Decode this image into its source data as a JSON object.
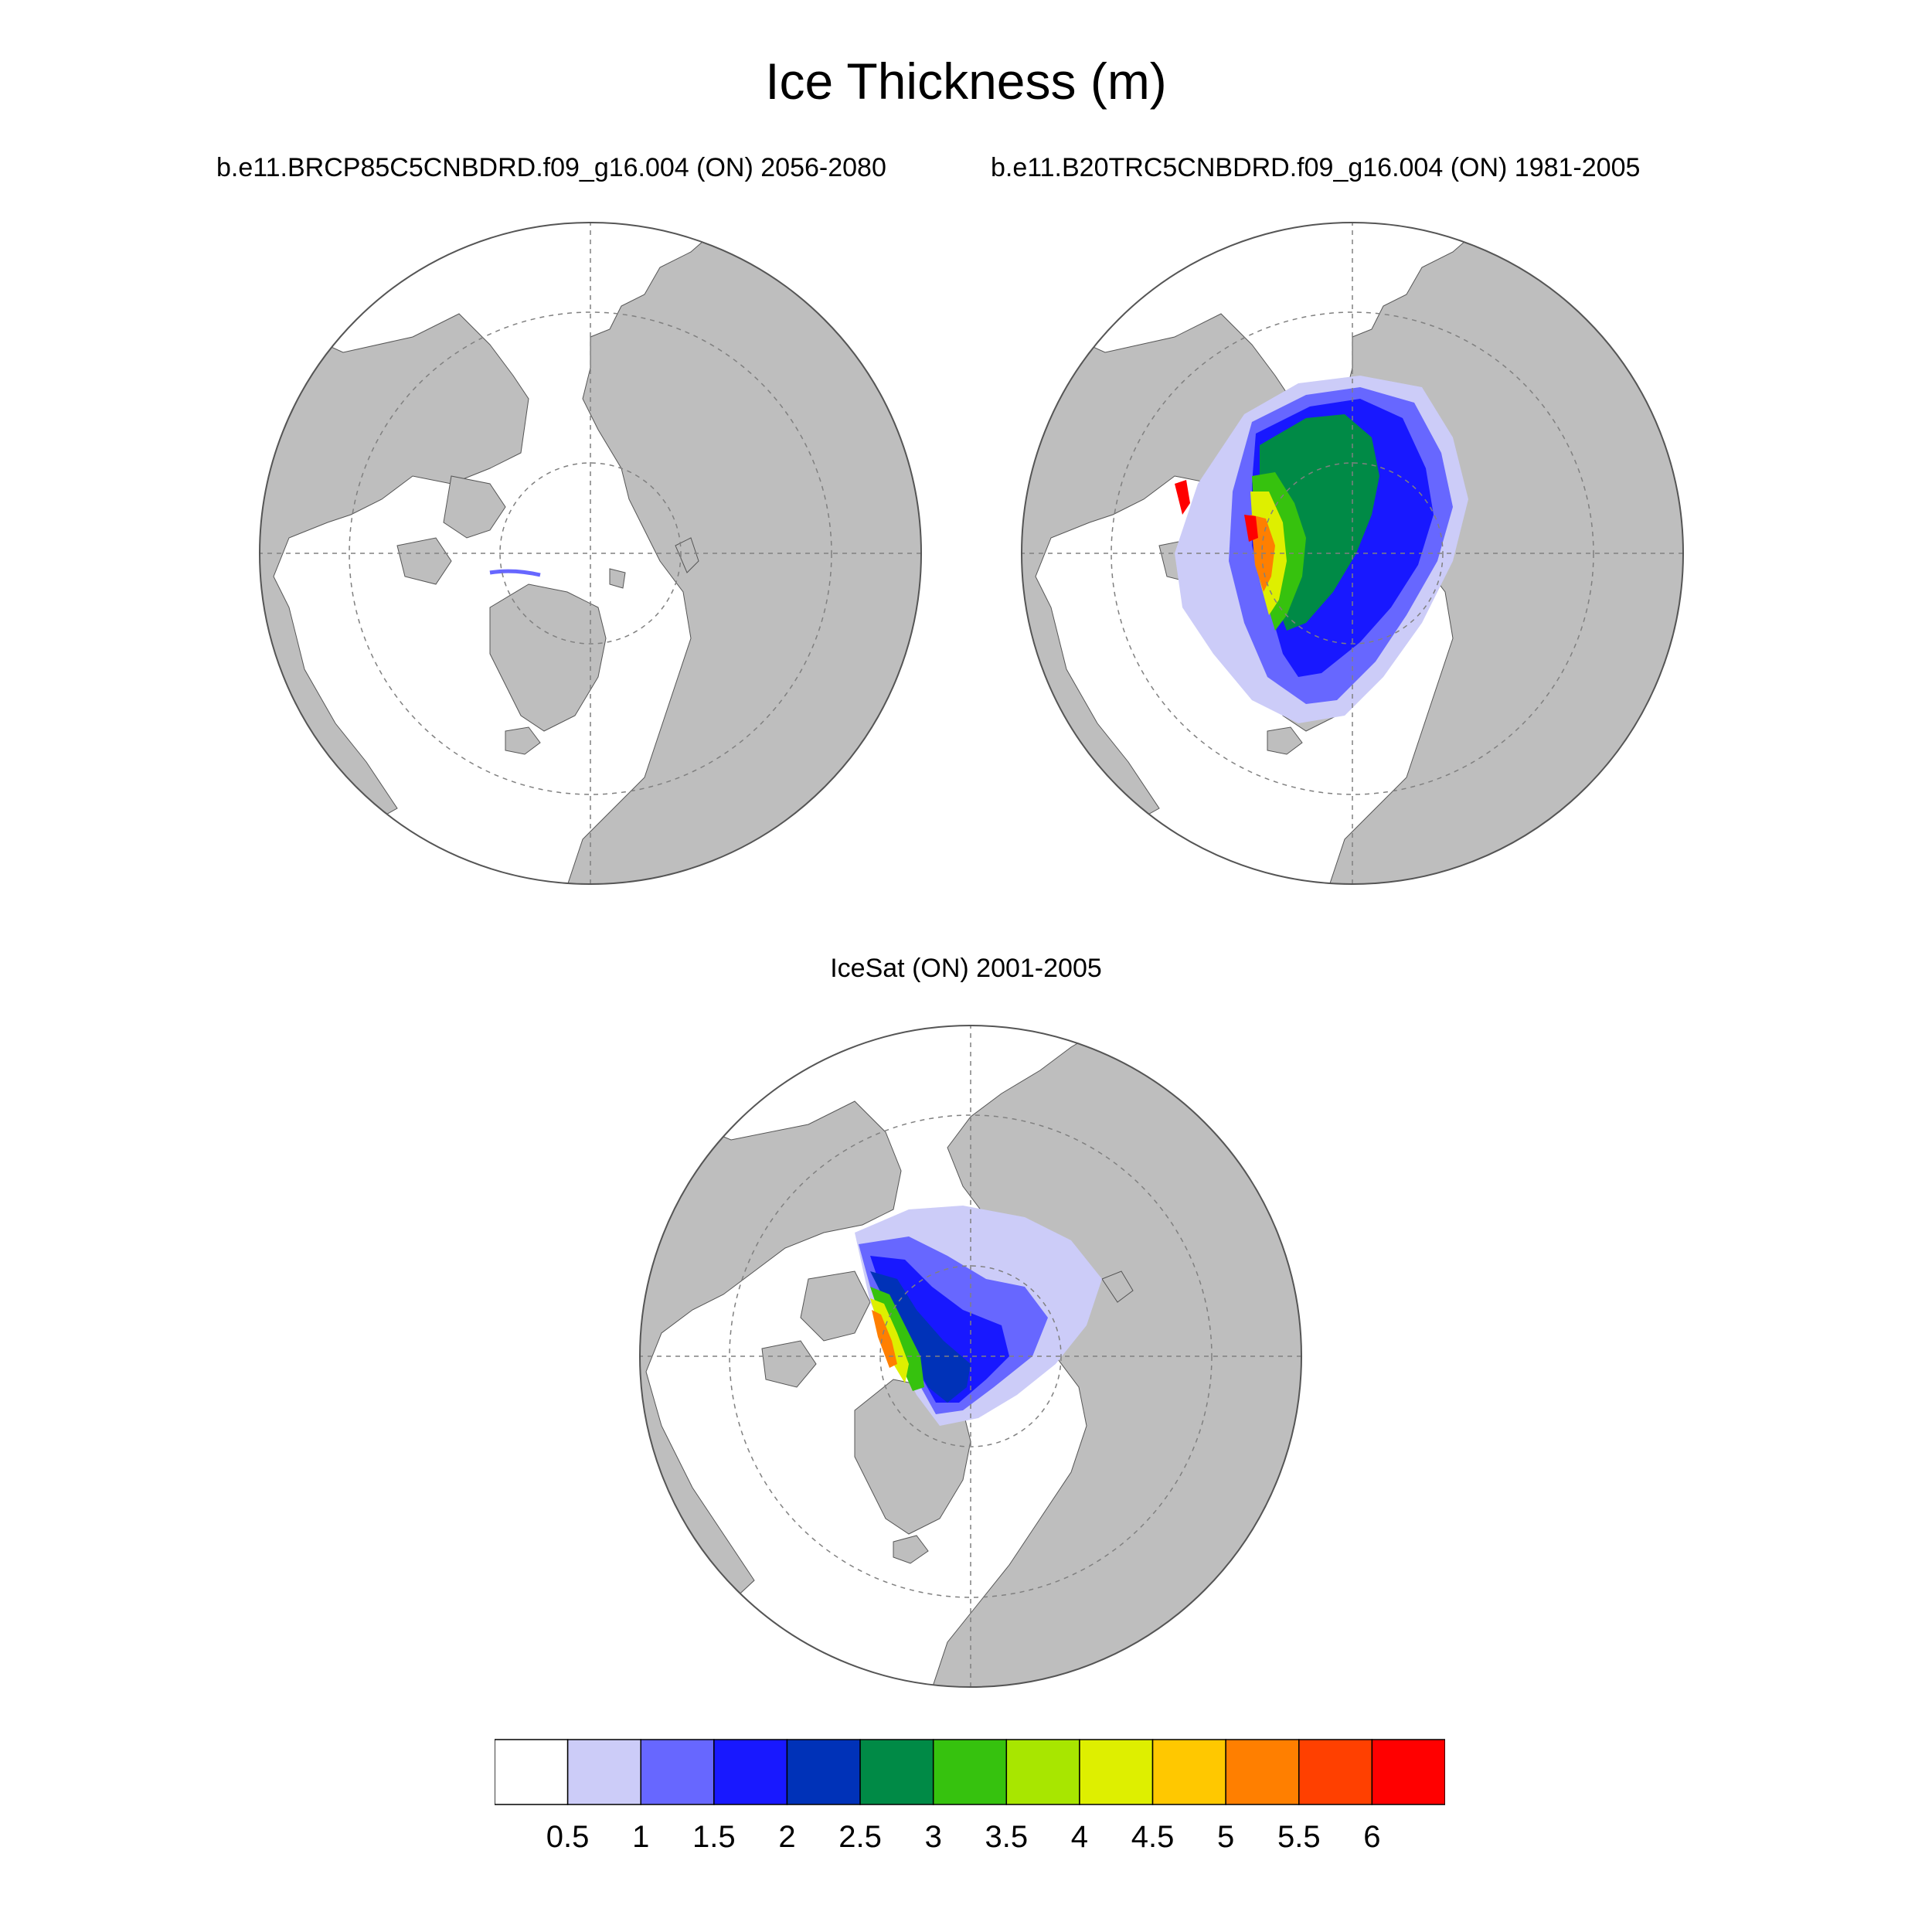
{
  "title": "Ice Thickness (m)",
  "panels": [
    {
      "title": "b.e11.BRCP85C5CNBDRD.f09_g16.004 (ON) 2056-2080"
    },
    {
      "title": "b.e11.B20TRC5CNBDRD.f09_g16.004 (ON) 1981-2005"
    },
    {
      "title": "IceSat (ON) 2001-2005"
    }
  ],
  "colorbar": {
    "labels": [
      "0.5",
      "1",
      "1.5",
      "2",
      "2.5",
      "3",
      "3.5",
      "4",
      "4.5",
      "5",
      "5.5",
      "6"
    ],
    "colors": [
      "#ffffff",
      "#ccccf8",
      "#6767ff",
      "#1818ff",
      "#0032b8",
      "#008a46",
      "#36c20e",
      "#a8e600",
      "#deef00",
      "#ffc800",
      "#ff7f00",
      "#ff4000",
      "#ff0000"
    ]
  },
  "colors": {
    "land": "#bebebe",
    "grid": "#808080",
    "ocean": "#ffffff"
  }
}
